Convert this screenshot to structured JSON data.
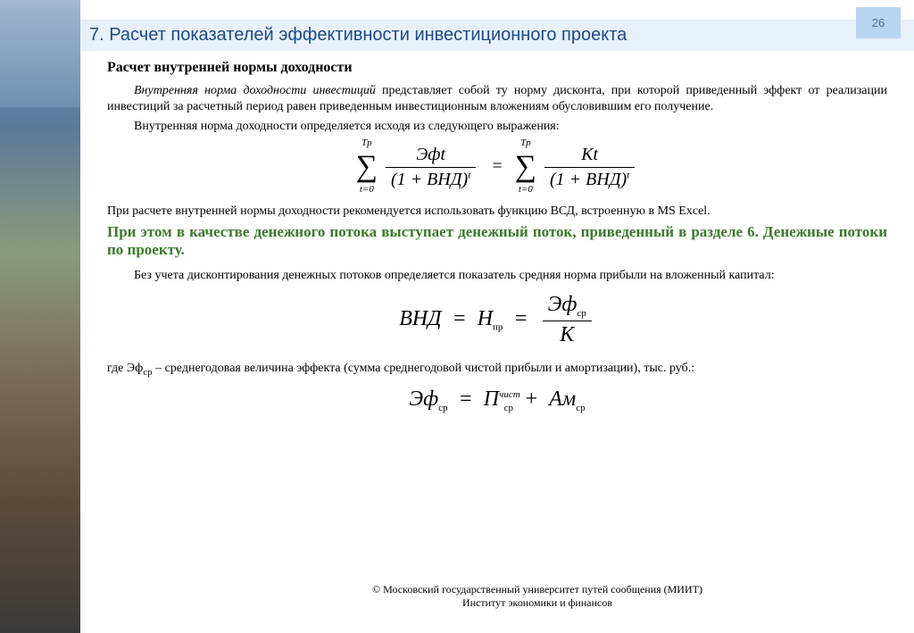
{
  "page_number": "26",
  "title": "7. Расчет показателей эффективности инвестиционного проекта",
  "subheading": "Расчет  внутренней нормы доходности",
  "intro_italic": "Внутренняя норма доходности инвестиций",
  "intro_rest": " представляет собой ту норму дисконта, при которой приведенный эффект от реализации инвестиций за расчетный период равен приведенным инвестиционным вложениям обусловившим его получение.",
  "intro_line2": "Внутренняя норма доходности определяется исходя из следующего выражения:",
  "formula1": {
    "sum_top": "Tр",
    "sum_bot": "t=0",
    "left_num": "Эфt",
    "left_den_base": "(1 + ВНД)",
    "left_den_exp": "t",
    "right_num": "Кt",
    "right_den_base": "(1 + ВНД)",
    "right_den_exp": "t"
  },
  "para2": "При расчете внутренней нормы доходности рекомендуется использовать функцию ВСД, встроенную в MS Excel.",
  "green_text": "При этом в качестве денежного потока выступает денежный поток, приведенный в разделе 6. Денежные потоки по проекту.",
  "para3": "Без учета дисконтирования денежных потоков определяется показатель средняя норма прибыли на вложенный капитал:",
  "formula2": {
    "lhs1": "ВНД",
    "lhs2": "Н",
    "lhs2_sub": "пр",
    "num": "Эф",
    "num_sub": "ср",
    "den": "К"
  },
  "para4_pre": "где Эф",
  "para4_sub": "ср",
  "para4_rest": " – среднегодовая величина эффекта (сумма среднегодовой чистой прибыли и амортизации), тыс. руб.:",
  "formula3": {
    "lhs": "Эф",
    "lhs_sub": "ср",
    "t1": "П",
    "t1_sup": "чист",
    "t1_sub": "ср",
    "t2": "Ам",
    "t2_sub": "ср"
  },
  "footer_line1": "© Московский государственный университет путей сообщения (МИИТ)",
  "footer_line2": "Институт экономики и финансов",
  "colors": {
    "title_color": "#1a4a8a",
    "title_bg": "#e8f0fa",
    "pagenum_bg": "#b8d4f0",
    "green": "#3a7a2a"
  }
}
